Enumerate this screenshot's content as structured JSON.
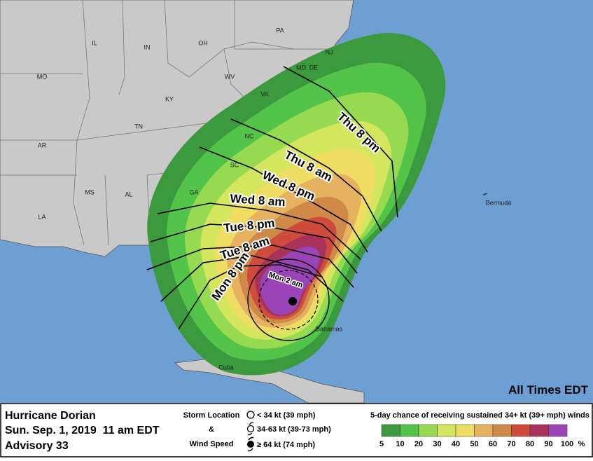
{
  "map": {
    "states": [
      "PA",
      "IL",
      "IN",
      "OH",
      "MO",
      "KY",
      "WV",
      "VA",
      "TN",
      "NC",
      "AR",
      "SC",
      "MS",
      "AL",
      "GA",
      "LA",
      "NJ",
      "DE",
      "MD"
    ],
    "places": [
      "Bermuda",
      "Bahamas",
      "Cuba"
    ],
    "time_labels": [
      "Thu 8 pm",
      "Thu 8 am",
      "Wed 8 pm",
      "Wed 8 am",
      "Tue 8 pm",
      "Tue 8 am",
      "Mon 8 pm",
      "Mon 2 am"
    ],
    "note": "All Times EDT"
  },
  "footer": {
    "title": [
      "Hurricane Dorian",
      "Sun. Sep. 1, 2019  11 am EDT",
      "Advisory 33"
    ],
    "storm_key": {
      "heading": [
        "Storm Location",
        "&",
        "Wind Speed"
      ],
      "items": [
        "< 34 kt (39 mph)",
        "34-63 kt (39-73 mph)",
        "≥ 64 kt (74 mph)"
      ]
    },
    "scale": {
      "title": "5-day chance of receiving sustained 34+ kt (39+ mph) winds",
      "bins": [
        5,
        10,
        20,
        30,
        40,
        50,
        60,
        70,
        80,
        90,
        100
      ],
      "unit": "%",
      "colors": [
        "#3b9a3d",
        "#52c449",
        "#95da50",
        "#d4e65d",
        "#efdc62",
        "#e6b25f",
        "#cf8a48",
        "#cf4b3b",
        "#a8325a",
        "#9a44b8"
      ]
    }
  }
}
